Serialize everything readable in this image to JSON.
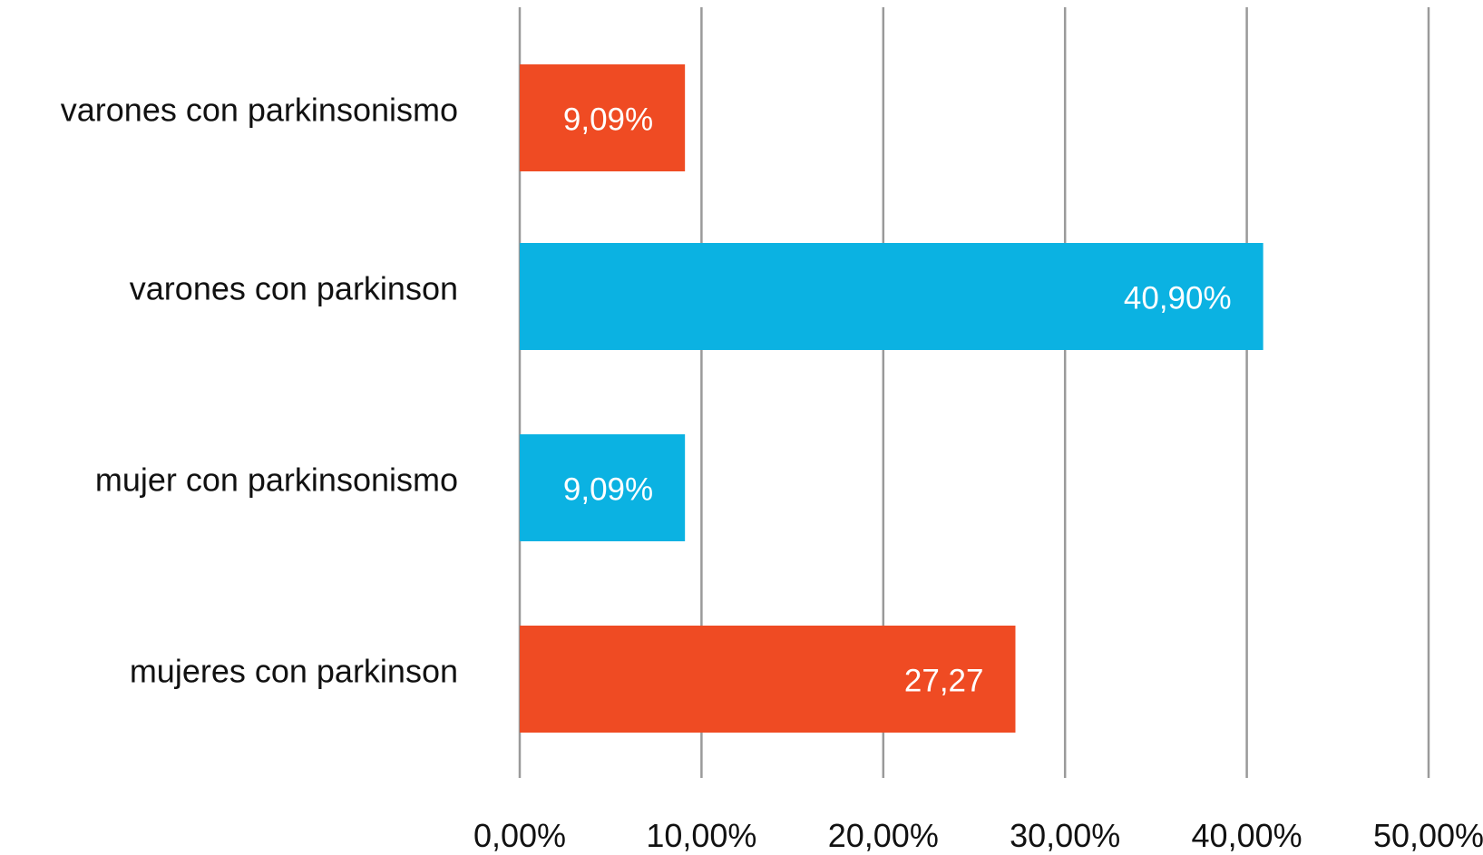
{
  "chart_data": {
    "type": "bar",
    "orientation": "horizontal",
    "categories": [
      "varones con parkinsonismo",
      "varones con parkinson",
      "mujer con parkinsonismo",
      "mujeres con parkinson"
    ],
    "values": [
      9.09,
      40.9,
      9.09,
      27.27
    ],
    "data_labels": [
      "9,09%",
      "40,90%",
      "9,09%",
      "27,27"
    ],
    "bar_colors": [
      "#ef4b23",
      "#0bb2e2",
      "#0bb2e2",
      "#ef4b23"
    ],
    "xlim": [
      0,
      50
    ],
    "xticks": [
      0,
      10,
      20,
      30,
      40,
      50
    ],
    "xtick_labels": [
      "0,00%",
      "10,00%",
      "20,00%",
      "30,00%",
      "40,00%",
      "50,00%"
    ],
    "grid": "vertical",
    "legend": "none"
  }
}
